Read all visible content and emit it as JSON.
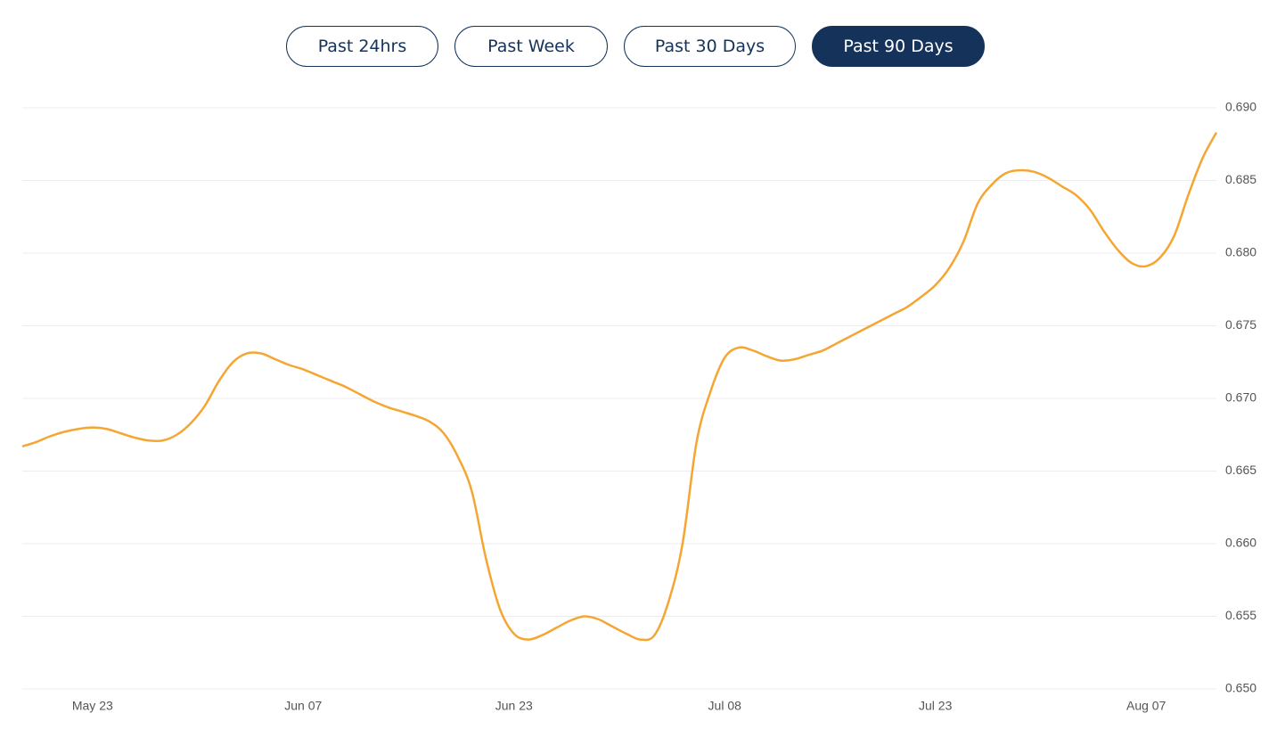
{
  "buttons": [
    "Past 24hrs",
    "Past Week",
    "Past 30 Days",
    "Past 90 Days"
  ],
  "active_button": 3,
  "chart_data": {
    "type": "line",
    "color": "#f5a632",
    "grid": true,
    "categories": [
      null,
      null,
      null,
      null,
      null,
      "May 23",
      null,
      null,
      null,
      null,
      null,
      null,
      null,
      null,
      null,
      null,
      null,
      null,
      null,
      null,
      "Jun 07",
      null,
      null,
      null,
      null,
      null,
      null,
      null,
      null,
      null,
      null,
      null,
      null,
      null,
      null,
      "Jun 23",
      null,
      null,
      null,
      null,
      null,
      null,
      null,
      null,
      null,
      null,
      null,
      null,
      null,
      null,
      "Jul 08",
      null,
      null,
      null,
      null,
      null,
      null,
      null,
      null,
      null,
      null,
      null,
      null,
      null,
      null,
      "Jul 23",
      null,
      null,
      null,
      null,
      null,
      null,
      null,
      null,
      null,
      null,
      null,
      null,
      null,
      null,
      "Aug 07",
      null,
      null,
      null,
      null,
      null
    ],
    "values": [
      0.6667,
      0.667,
      0.6674,
      0.6677,
      0.6679,
      0.668,
      0.6679,
      0.6676,
      0.6673,
      0.6671,
      0.6671,
      0.6675,
      0.6683,
      0.6695,
      0.6712,
      0.6725,
      0.6731,
      0.6731,
      0.6727,
      0.6723,
      0.672,
      0.6716,
      0.6712,
      0.6708,
      0.6703,
      0.6698,
      0.6694,
      0.6691,
      0.6688,
      0.6684,
      0.6676,
      0.666,
      0.6636,
      0.659,
      0.6555,
      0.6538,
      0.6534,
      0.6537,
      0.6542,
      0.6547,
      0.655,
      0.6548,
      0.6543,
      0.6538,
      0.6534,
      0.6537,
      0.656,
      0.66,
      0.667,
      0.6705,
      0.6728,
      0.6735,
      0.6733,
      0.6729,
      0.6726,
      0.6727,
      0.673,
      0.6733,
      0.6738,
      0.6743,
      0.6748,
      0.6753,
      0.6758,
      0.6763,
      0.677,
      0.6778,
      0.679,
      0.6808,
      0.6834,
      0.6847,
      0.6855,
      0.6857,
      0.6856,
      0.6852,
      0.6846,
      0.684,
      0.683,
      0.6815,
      0.6802,
      0.6793,
      0.6791,
      0.6797,
      0.6812,
      0.684,
      0.6865,
      0.6883
    ],
    "ylim": [
      0.65,
      0.69
    ],
    "yticks": [
      {
        "value": 0.65,
        "label": "0.650"
      },
      0.655,
      {
        "value": 0.66,
        "label": "0.660"
      },
      0.665,
      {
        "value": 0.67,
        "label": "0.670"
      },
      0.675,
      {
        "value": 0.68,
        "label": "0.680"
      },
      0.685,
      {
        "value": 0.69,
        "label": "0.690"
      }
    ]
  }
}
